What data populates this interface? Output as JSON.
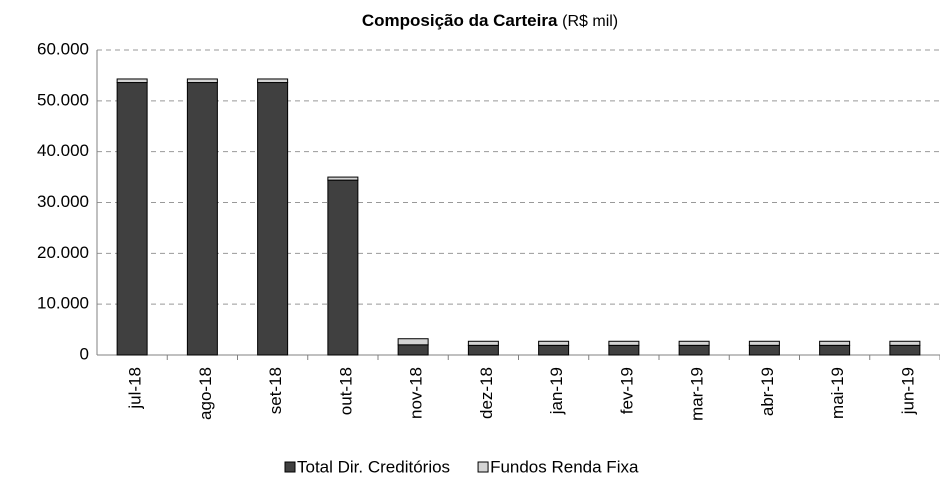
{
  "chart_data": {
    "type": "stacked_bar",
    "title": "Composição da Carteira",
    "title_unit": "(R$ mil)",
    "categories": [
      "jul-18",
      "ago-18",
      "set-18",
      "out-18",
      "nov-18",
      "dez-18",
      "jan-19",
      "fev-19",
      "mar-19",
      "abr-19",
      "mai-19",
      "jun-19"
    ],
    "series": [
      {
        "name": "Total Dir. Creditórios",
        "color": "#404040",
        "values": [
          53600,
          53600,
          53600,
          34400,
          2000,
          1900,
          1900,
          1900,
          1900,
          1900,
          1900,
          1900
        ]
      },
      {
        "name": "Fundos Renda Fixa",
        "color": "#d4d4d4",
        "values": [
          700,
          700,
          700,
          600,
          1200,
          800,
          800,
          800,
          800,
          800,
          800,
          800
        ]
      }
    ],
    "ylim": [
      0,
      60000
    ],
    "yticks": [
      0,
      {
        "value": 10000,
        "label": "10.000"
      },
      {
        "value": 20000,
        "label": "20.000"
      },
      {
        "value": 30000,
        "label": "30.000"
      },
      {
        "value": 40000,
        "label": "40.000"
      },
      {
        "value": 50000,
        "label": "50.000"
      },
      {
        "value": 60000,
        "label": "60.000"
      }
    ],
    "grid": true,
    "legend": "bottom"
  }
}
